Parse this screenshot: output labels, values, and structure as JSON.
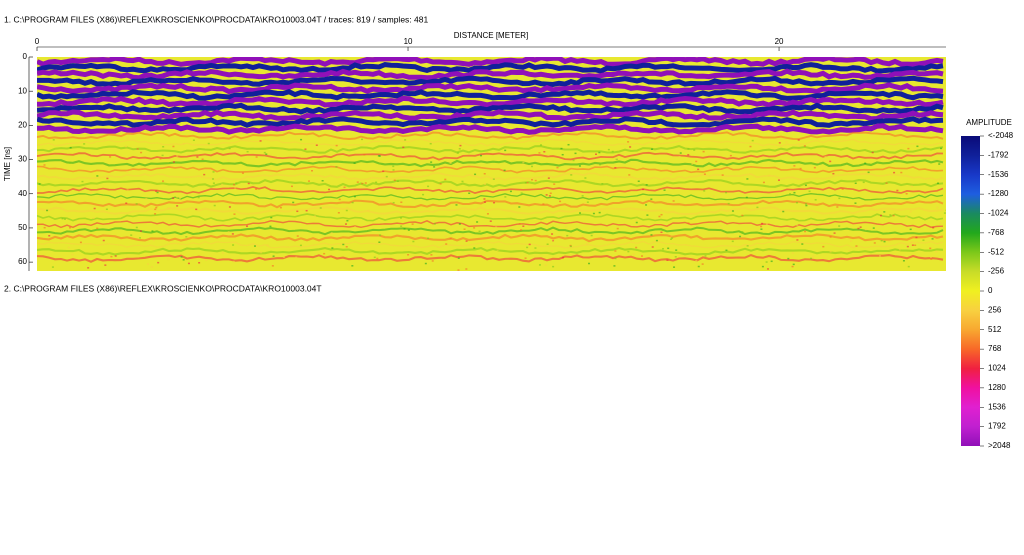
{
  "chart_data": {
    "type": "radargram",
    "title": "1. C:\\PROGRAM FILES (X86)\\REFLEX\\KROSCIENKO\\PROCDATA\\KRO10003.04T  / traces: 819 / samples: 481",
    "second_title": "2. C:\\PROGRAM FILES (X86)\\REFLEX\\KROSCIENKO\\PROCDATA\\KRO10003.04T",
    "x_label": "DISTANCE [METER]",
    "y_label": "TIME [ns]",
    "xlim": [
      0,
      24.5
    ],
    "xticks": [
      0,
      10,
      20
    ],
    "ylim": [
      0,
      62.6
    ],
    "yticks": [
      0,
      10,
      20,
      30,
      40,
      50,
      60
    ],
    "colorbar_title": "AMPLITUDE",
    "zlim": [
      -2048,
      2048
    ],
    "zticks": [
      {
        "value": -2048,
        "label": "<-2048"
      },
      -1792,
      -1536,
      -1280,
      -1024,
      -768,
      -512,
      -256,
      0,
      256,
      512,
      768,
      1024,
      1280,
      1536,
      1792,
      {
        "value": 2048,
        "label": ">2048"
      }
    ],
    "colors": [
      "#0a0a78",
      "#10209a",
      "#1838c8",
      "#1e5ee0",
      "#1a8a60",
      "#22a81c",
      "#7cc81a",
      "#c8dc28",
      "#f0f020",
      "#f8d040",
      "#f8a830",
      "#f86828",
      "#f02040",
      "#f010a0",
      "#e020d0",
      "#c020d0",
      "#9010b8"
    ]
  }
}
